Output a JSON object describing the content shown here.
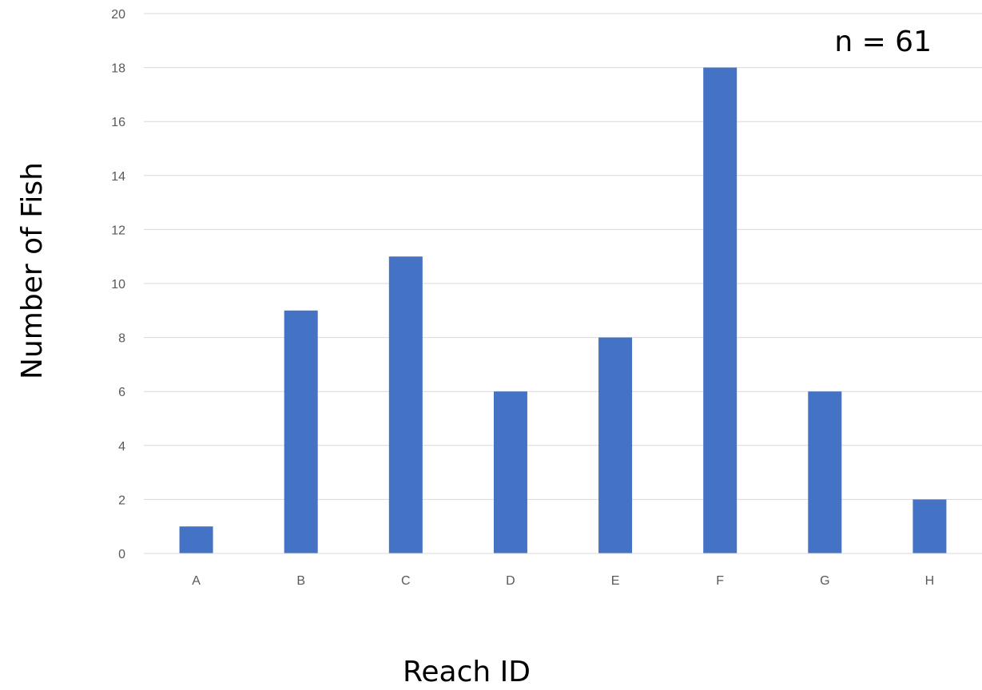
{
  "chart_data": {
    "type": "bar",
    "title": "",
    "xlabel": "Reach ID",
    "ylabel": "Number of Fish",
    "annotation": "n = 61",
    "categories": [
      "A",
      "B",
      "C",
      "D",
      "E",
      "F",
      "G",
      "H"
    ],
    "values": [
      1,
      9,
      11,
      6,
      8,
      18,
      6,
      2
    ],
    "ylim": [
      0,
      20
    ],
    "yticks": [
      "0",
      "2",
      "4",
      "6",
      "8",
      "10",
      "12",
      "14",
      "16",
      "18",
      "20"
    ],
    "grid": true,
    "legend": "none",
    "bar_color": "#4472c4"
  }
}
